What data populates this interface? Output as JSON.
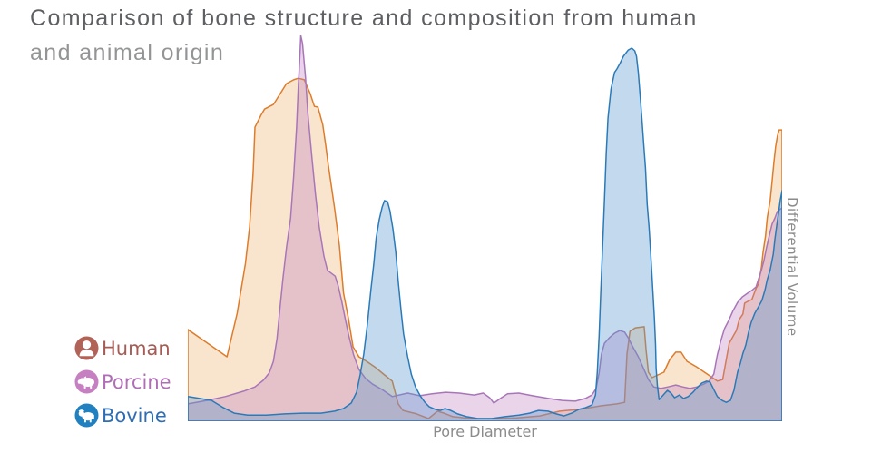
{
  "title": {
    "line1": "Comparison of bone structure and composition from human",
    "line2": "and animal origin"
  },
  "legend": {
    "items": [
      {
        "id": "human",
        "label": "Human",
        "label_color": "#a65b54",
        "icon": "person-icon",
        "icon_bg": "#b26358"
      },
      {
        "id": "porcine",
        "label": "Porcine",
        "label_color": "#ae6fb4",
        "icon": "pig-icon",
        "icon_bg": "#c67fc0"
      },
      {
        "id": "bovine",
        "label": "Bovine",
        "label_color": "#2f6eb3",
        "icon": "cow-icon",
        "icon_bg": "#2180bf"
      }
    ]
  },
  "chart_data": {
    "type": "area",
    "title": "Comparison of bone structure and composition from human and animal origin",
    "xlabel": "Pore Diameter",
    "ylabel": "Differential Volume",
    "x_axis": {
      "range": [
        0,
        100
      ],
      "tick_labels": "none (qualitative axis)"
    },
    "y_axis": {
      "range": [
        0,
        100
      ],
      "tick_labels": "none (qualitative axis)"
    },
    "grid": false,
    "legend_position": "bottom-left",
    "legend_entries": [
      "Human",
      "Porcine",
      "Bovine"
    ],
    "series": [
      {
        "name": "Human",
        "id": "human",
        "stroke": "#dd7c2a",
        "fill": "rgba(232,150,60,0.25)",
        "points": [
          [
            0,
            23.8
          ],
          [
            6.6,
            16.7
          ],
          [
            8.3,
            28
          ],
          [
            9.7,
            40.9
          ],
          [
            10.4,
            50.4
          ],
          [
            11,
            64.5
          ],
          [
            11.3,
            76.2
          ],
          [
            12.3,
            79.3
          ],
          [
            12.9,
            80.9
          ],
          [
            14.4,
            82.1
          ],
          [
            14.9,
            83.3
          ],
          [
            16.6,
            87.5
          ],
          [
            17.8,
            88.5
          ],
          [
            18.6,
            88.9
          ],
          [
            19.6,
            88.5
          ],
          [
            20.6,
            84.9
          ],
          [
            21.3,
            81.6
          ],
          [
            21.9,
            81.4
          ],
          [
            22.7,
            76.9
          ],
          [
            23.2,
            71.5
          ],
          [
            23.6,
            66.8
          ],
          [
            24.2,
            60.5
          ],
          [
            24.7,
            55.1
          ],
          [
            25.5,
            45.6
          ],
          [
            26.2,
            33.2
          ],
          [
            27,
            26.8
          ],
          [
            27.8,
            19.3
          ],
          [
            28.8,
            16.7
          ],
          [
            30.1,
            15.5
          ],
          [
            31.6,
            13.9
          ],
          [
            33.1,
            12
          ],
          [
            34.4,
            10.4
          ],
          [
            35.4,
            4.5
          ],
          [
            36.2,
            2.8
          ],
          [
            38.5,
            1.9
          ],
          [
            40.5,
            0.7
          ],
          [
            42,
            2.6
          ],
          [
            43.1,
            2.1
          ],
          [
            44.6,
            1.2
          ],
          [
            47.7,
            0.7
          ],
          [
            51.5,
            0.7
          ],
          [
            55.4,
            0.9
          ],
          [
            59.2,
            1.4
          ],
          [
            62.6,
            2.6
          ],
          [
            66.1,
            3.1
          ],
          [
            69.5,
            4
          ],
          [
            72.2,
            4.5
          ],
          [
            73.5,
            4.9
          ],
          [
            73.9,
            17.4
          ],
          [
            74.4,
            23.3
          ],
          [
            75.3,
            24.2
          ],
          [
            76.8,
            24.5
          ],
          [
            77.1,
            18.6
          ],
          [
            77.5,
            12.7
          ],
          [
            78.1,
            11.3
          ],
          [
            79.1,
            12
          ],
          [
            80.1,
            12.7
          ],
          [
            81.1,
            16
          ],
          [
            82.1,
            17.9
          ],
          [
            83,
            17.9
          ],
          [
            84,
            15.5
          ],
          [
            85.6,
            14.1
          ],
          [
            87.6,
            12
          ],
          [
            89.1,
            10.4
          ],
          [
            90,
            10.8
          ],
          [
            90.5,
            15.1
          ],
          [
            91.1,
            20.2
          ],
          [
            91.9,
            22.4
          ],
          [
            92.3,
            23.5
          ],
          [
            92.8,
            26.4
          ],
          [
            93.4,
            27.8
          ],
          [
            93.7,
            30.6
          ],
          [
            94.5,
            31.3
          ],
          [
            94.9,
            31.5
          ],
          [
            95.6,
            34.4
          ],
          [
            96,
            35.5
          ],
          [
            96.5,
            39.8
          ],
          [
            96.8,
            43.8
          ],
          [
            97.2,
            48
          ],
          [
            97.5,
            52.7
          ],
          [
            98,
            57.4
          ],
          [
            98.3,
            62.1
          ],
          [
            98.6,
            66.8
          ],
          [
            98.9,
            71.1
          ],
          [
            99.2,
            73.9
          ],
          [
            99.5,
            75.5
          ],
          [
            100,
            75.5
          ]
        ]
      },
      {
        "name": "Porcine",
        "id": "porcine",
        "stroke": "#a876b8",
        "fill": "rgba(186,120,190,0.32)",
        "points": [
          [
            0,
            4.5
          ],
          [
            3.2,
            5.4
          ],
          [
            6.3,
            6.4
          ],
          [
            9.4,
            7.8
          ],
          [
            11.3,
            8.9
          ],
          [
            12.7,
            10.6
          ],
          [
            13.7,
            12.5
          ],
          [
            14.4,
            15.5
          ],
          [
            15,
            21.4
          ],
          [
            15.5,
            29.2
          ],
          [
            16,
            36.9
          ],
          [
            16.6,
            44.9
          ],
          [
            17.3,
            52.7
          ],
          [
            17.8,
            63.3
          ],
          [
            18.3,
            76.2
          ],
          [
            18.6,
            86.8
          ],
          [
            18.9,
            96.2
          ],
          [
            19,
            100
          ],
          [
            19.3,
            97.9
          ],
          [
            19.8,
            89.2
          ],
          [
            20.2,
            79.8
          ],
          [
            20.9,
            68
          ],
          [
            21.5,
            58.6
          ],
          [
            22.1,
            50.4
          ],
          [
            22.9,
            42.8
          ],
          [
            23.5,
            39.1
          ],
          [
            24.8,
            37.6
          ],
          [
            25.3,
            35.1
          ],
          [
            25.9,
            31.1
          ],
          [
            26.5,
            26.4
          ],
          [
            27.1,
            22.1
          ],
          [
            27.9,
            17.2
          ],
          [
            28.8,
            13.4
          ],
          [
            29.9,
            11.1
          ],
          [
            31.1,
            9.6
          ],
          [
            32.7,
            8.2
          ],
          [
            34.4,
            6.4
          ],
          [
            37,
            7.3
          ],
          [
            39,
            6.6
          ],
          [
            41.1,
            7.1
          ],
          [
            43.4,
            7.5
          ],
          [
            45.7,
            7.3
          ],
          [
            48.2,
            6.8
          ],
          [
            49.7,
            7.3
          ],
          [
            50.8,
            6.1
          ],
          [
            51.5,
            4.7
          ],
          [
            52.6,
            5.9
          ],
          [
            53.8,
            7.1
          ],
          [
            55.7,
            7.3
          ],
          [
            58,
            6.6
          ],
          [
            60.7,
            5.9
          ],
          [
            63,
            5.4
          ],
          [
            65.2,
            5.2
          ],
          [
            66.9,
            5.9
          ],
          [
            68,
            6.8
          ],
          [
            68.7,
            8.5
          ],
          [
            69.2,
            12.5
          ],
          [
            69.6,
            17.4
          ],
          [
            70.1,
            20.2
          ],
          [
            70.9,
            21.6
          ],
          [
            71.8,
            22.8
          ],
          [
            72.7,
            23.5
          ],
          [
            73.5,
            23.1
          ],
          [
            74.1,
            21.6
          ],
          [
            74.8,
            19.5
          ],
          [
            75.8,
            16.7
          ],
          [
            76.7,
            13.6
          ],
          [
            77.5,
            10.8
          ],
          [
            78.4,
            8.9
          ],
          [
            79.6,
            8.5
          ],
          [
            80.8,
            8.9
          ],
          [
            82.1,
            9.4
          ],
          [
            83.3,
            8.9
          ],
          [
            84.5,
            8.5
          ],
          [
            85.7,
            8.9
          ],
          [
            86.8,
            9.6
          ],
          [
            87.7,
            10.4
          ],
          [
            88.5,
            12.2
          ],
          [
            89.1,
            17.2
          ],
          [
            89.7,
            20.9
          ],
          [
            90.3,
            24
          ],
          [
            91,
            26.1
          ],
          [
            91.7,
            28.5
          ],
          [
            92.5,
            30.8
          ],
          [
            93.3,
            32.2
          ],
          [
            94.2,
            33.2
          ],
          [
            94.9,
            33.9
          ],
          [
            95.6,
            34.8
          ],
          [
            96,
            36.7
          ],
          [
            96.5,
            39.1
          ],
          [
            96.9,
            41.4
          ],
          [
            97.4,
            45.2
          ],
          [
            97.9,
            48.5
          ],
          [
            98.3,
            51.1
          ],
          [
            98.8,
            52.7
          ],
          [
            99.2,
            54.4
          ],
          [
            100,
            55.3
          ]
        ]
      },
      {
        "name": "Bovine",
        "id": "bovine",
        "stroke": "#2a7ab8",
        "fill": "rgba(88,152,208,0.36)",
        "points": [
          [
            0,
            6.4
          ],
          [
            2,
            5.9
          ],
          [
            4,
            5.4
          ],
          [
            6,
            3.5
          ],
          [
            7.8,
            2.1
          ],
          [
            10.1,
            1.6
          ],
          [
            13.2,
            1.6
          ],
          [
            16.3,
            1.9
          ],
          [
            19.3,
            2.1
          ],
          [
            22.4,
            2.1
          ],
          [
            24.7,
            2.6
          ],
          [
            26.2,
            3.3
          ],
          [
            27.5,
            4.7
          ],
          [
            28.4,
            7.5
          ],
          [
            29,
            12
          ],
          [
            29.6,
            17.4
          ],
          [
            30.2,
            24.9
          ],
          [
            30.8,
            33.9
          ],
          [
            31.3,
            40.9
          ],
          [
            31.7,
            47.5
          ],
          [
            32.2,
            52.2
          ],
          [
            32.7,
            55.5
          ],
          [
            33.1,
            57.2
          ],
          [
            33.6,
            56.9
          ],
          [
            34,
            54.6
          ],
          [
            34.5,
            49.9
          ],
          [
            35,
            43.8
          ],
          [
            35.4,
            36.2
          ],
          [
            35.9,
            28.5
          ],
          [
            36.3,
            22.6
          ],
          [
            37,
            16.7
          ],
          [
            37.6,
            12.2
          ],
          [
            38.3,
            8.9
          ],
          [
            39.1,
            6.6
          ],
          [
            39.9,
            4.9
          ],
          [
            40.6,
            3.8
          ],
          [
            41.6,
            3.1
          ],
          [
            42.5,
            2.8
          ],
          [
            43.3,
            3.3
          ],
          [
            44.2,
            2.8
          ],
          [
            45.4,
            1.9
          ],
          [
            46.9,
            1.2
          ],
          [
            48.8,
            0.7
          ],
          [
            51.1,
            0.7
          ],
          [
            53.4,
            1.2
          ],
          [
            55.7,
            1.6
          ],
          [
            57.5,
            2.1
          ],
          [
            59,
            2.8
          ],
          [
            60.6,
            2.6
          ],
          [
            62,
            1.9
          ],
          [
            63.3,
            1.4
          ],
          [
            64.6,
            2.1
          ],
          [
            65.8,
            3.1
          ],
          [
            66.9,
            3.5
          ],
          [
            68,
            4.2
          ],
          [
            68.6,
            6.8
          ],
          [
            68.9,
            12.7
          ],
          [
            69.2,
            22.1
          ],
          [
            69.5,
            33.9
          ],
          [
            69.8,
            45.6
          ],
          [
            70.1,
            57.4
          ],
          [
            70.4,
            69.2
          ],
          [
            70.7,
            78.6
          ],
          [
            71.2,
            86.1
          ],
          [
            71.8,
            90.4
          ],
          [
            72.2,
            91.3
          ],
          [
            72.7,
            92.7
          ],
          [
            73.3,
            94.6
          ],
          [
            74.1,
            96.2
          ],
          [
            74.7,
            96.7
          ],
          [
            75.2,
            96
          ],
          [
            75.5,
            94.6
          ],
          [
            75.8,
            90.4
          ],
          [
            76.1,
            84.5
          ],
          [
            76.4,
            78.6
          ],
          [
            76.7,
            72
          ],
          [
            77,
            65.6
          ],
          [
            77.3,
            56.2
          ],
          [
            77.6,
            50.4
          ],
          [
            77.9,
            43.3
          ],
          [
            78.2,
            35.1
          ],
          [
            78.5,
            26.8
          ],
          [
            78.7,
            19.8
          ],
          [
            78.8,
            13.9
          ],
          [
            79,
            9.2
          ],
          [
            79.3,
            5.6
          ],
          [
            79.9,
            6.6
          ],
          [
            80.7,
            8
          ],
          [
            81.3,
            7.3
          ],
          [
            81.9,
            6.1
          ],
          [
            82.7,
            6.8
          ],
          [
            83.4,
            5.9
          ],
          [
            84.2,
            6.4
          ],
          [
            85,
            7.5
          ],
          [
            85.7,
            8.7
          ],
          [
            86.5,
            9.9
          ],
          [
            87.3,
            10.4
          ],
          [
            87.9,
            10.1
          ],
          [
            88.5,
            8.2
          ],
          [
            89.1,
            6.4
          ],
          [
            89.9,
            5.4
          ],
          [
            90.6,
            4.9
          ],
          [
            91.3,
            5.4
          ],
          [
            91.9,
            8
          ],
          [
            92.5,
            12.7
          ],
          [
            93,
            15.1
          ],
          [
            93.4,
            17.6
          ],
          [
            93.9,
            19.8
          ],
          [
            94.3,
            22.8
          ],
          [
            94.8,
            25.6
          ],
          [
            95.4,
            28
          ],
          [
            96,
            29.6
          ],
          [
            96.6,
            31.3
          ],
          [
            97.1,
            33.9
          ],
          [
            97.5,
            36.7
          ],
          [
            98,
            39.3
          ],
          [
            98.5,
            43.3
          ],
          [
            98.8,
            47.3
          ],
          [
            99.1,
            50.8
          ],
          [
            99.4,
            54.1
          ],
          [
            99.7,
            57.4
          ],
          [
            100,
            59.8
          ]
        ]
      }
    ]
  }
}
